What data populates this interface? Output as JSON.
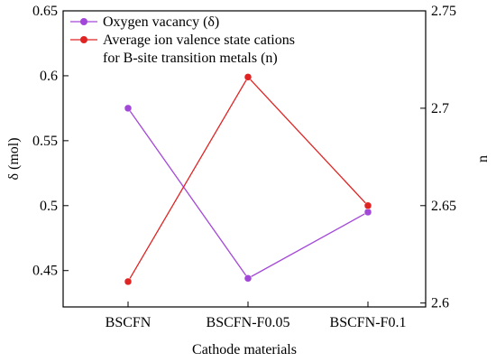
{
  "chart_data": {
    "type": "line",
    "x_label": "Cathode materials",
    "y_label": "δ (mol)",
    "y2_label": "n",
    "categories": [
      "BSCFN",
      "BSCFN-F0.05",
      "BSCFN-F0.1"
    ],
    "series": [
      {
        "name": "Oxygen vacancy (δ)",
        "color": "#a347d9",
        "values": [
          0.575,
          0.444,
          0.495
        ]
      },
      {
        "name": "Average ion valence state cations for B-site transition metals (n)",
        "color": "#e02424",
        "values": [
          2.611,
          2.716,
          2.65
        ],
        "axis": "y2"
      }
    ],
    "ylim": [
      0.422,
      0.65
    ],
    "yticks": [
      0.45,
      0.5,
      0.55,
      0.6,
      0.65
    ],
    "y2lim": [
      2.598,
      2.75
    ],
    "y2ticks": [
      2.6,
      2.65,
      2.7,
      2.75
    ],
    "legend": "top-left"
  }
}
